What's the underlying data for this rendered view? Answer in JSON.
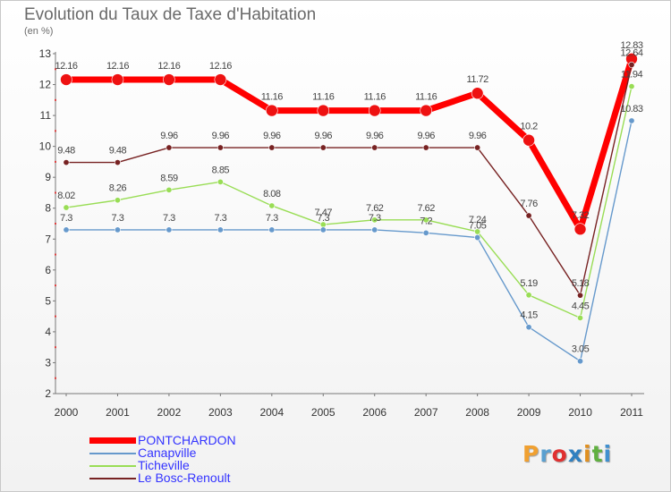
{
  "title": "Evolution du Taux de Taxe d'Habitation",
  "subtitle": "(en %)",
  "logo": {
    "text": "Proxiti",
    "colors": [
      "#f0a030",
      "#5aa0d0",
      "#e03030",
      "#3080c0",
      "#e09020",
      "#60b040",
      "#4090d0"
    ]
  },
  "chart_data": {
    "type": "line",
    "title": "Evolution du Taux de Taxe d'Habitation",
    "ylabel": "(en %)",
    "xlabel": "",
    "x": [
      "2000",
      "2001",
      "2002",
      "2003",
      "2004",
      "2005",
      "2006",
      "2007",
      "2008",
      "2009",
      "2010",
      "2011"
    ],
    "yticks": [
      2,
      3,
      4,
      5,
      6,
      7,
      8,
      9,
      10,
      11,
      12,
      13
    ],
    "ylim": [
      2,
      13
    ],
    "grid": false,
    "legend_position": "bottom-left",
    "series": [
      {
        "name": "PONTCHARDON",
        "color": "#ff0000",
        "values": [
          12.16,
          12.16,
          12.16,
          12.16,
          11.16,
          11.16,
          11.16,
          11.16,
          11.72,
          10.2,
          7.32,
          12.83
        ],
        "labels": [
          "12.16",
          "12.16",
          "12.16",
          "12.16",
          "11.16",
          "11.16",
          "11.16",
          "11.16",
          "11.72",
          "10.2",
          "7.32",
          "12.83"
        ]
      },
      {
        "name": "Canapville",
        "color": "#6699cc",
        "values": [
          7.3,
          7.3,
          7.3,
          7.3,
          7.3,
          7.3,
          7.3,
          7.2,
          7.05,
          4.15,
          3.05,
          10.83
        ],
        "labels": [
          "7.3",
          "7.3",
          "7.3",
          "7.3",
          "7.3",
          "7.3",
          "7.3",
          "7.2",
          "7.05",
          "4.15",
          "3.05",
          "10.83"
        ]
      },
      {
        "name": "Ticheville",
        "color": "#99dd55",
        "values": [
          8.02,
          8.26,
          8.59,
          8.85,
          8.08,
          7.47,
          7.62,
          7.62,
          7.24,
          5.19,
          4.45,
          11.94
        ],
        "labels": [
          "8.02",
          "8.26",
          "8.59",
          "8.85",
          "8.08",
          "7.47",
          "7.62",
          "7.62",
          "7.24",
          "5.19",
          "4.45",
          "11.94"
        ]
      },
      {
        "name": "Le Bosc-Renoult",
        "color": "#772222",
        "values": [
          9.48,
          9.48,
          9.96,
          9.96,
          9.96,
          9.96,
          9.96,
          9.96,
          9.96,
          7.76,
          5.18,
          12.64
        ],
        "labels": [
          "9.48",
          "9.48",
          "9.96",
          "9.96",
          "9.96",
          "9.96",
          "9.96",
          "9.96",
          "9.96",
          "7.76",
          "5.18",
          "12.64"
        ]
      }
    ]
  }
}
